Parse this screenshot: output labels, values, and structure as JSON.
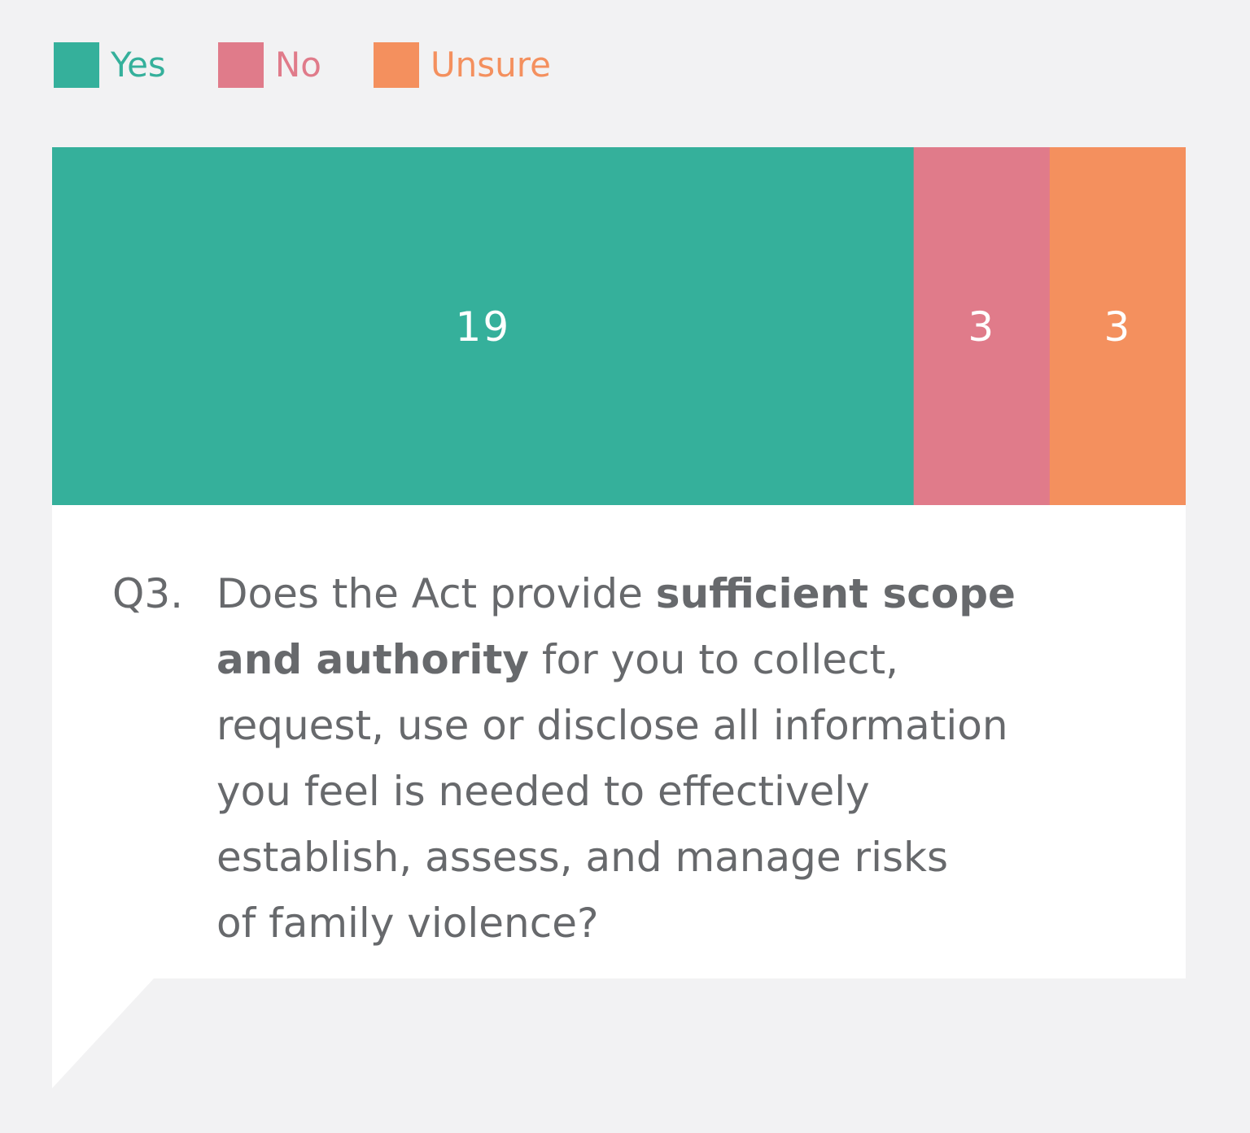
{
  "legend": {
    "items": [
      {
        "label": "Yes",
        "color": "#35b09b"
      },
      {
        "label": "No",
        "color": "#e07b8a"
      },
      {
        "label": "Unsure",
        "color": "#f4905e"
      }
    ]
  },
  "chart_data": {
    "type": "bar",
    "orientation": "horizontal-stacked",
    "categories": [
      "Q3"
    ],
    "series": [
      {
        "name": "Yes",
        "values": [
          19
        ],
        "color": "#35b09b"
      },
      {
        "name": "No",
        "values": [
          3
        ],
        "color": "#e07b8a"
      },
      {
        "name": "Unsure",
        "values": [
          3
        ],
        "color": "#f4905e"
      }
    ],
    "data_labels": [
      "19",
      "3",
      "3"
    ],
    "title": "",
    "xlabel": "",
    "ylabel": "",
    "grid": false,
    "legend_position": "top-left"
  },
  "question": {
    "number": "Q3.",
    "line1_normal": "Does the Act provide ",
    "line1_bold": "sufficient scope",
    "line2_bold": "and authority",
    "line2_normal": " for you to collect,",
    "line3": "request, use or disclose all information",
    "line4": "you feel is needed to effectively",
    "line5": "establish, assess, and manage risks",
    "line6": "of family violence?"
  }
}
